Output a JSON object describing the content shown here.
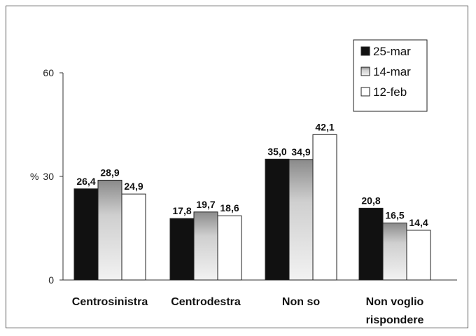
{
  "chart_data": {
    "type": "bar",
    "categories": [
      [
        "Centrosinistra"
      ],
      [
        "Centrodestra"
      ],
      [
        "Non so"
      ],
      [
        "Non voglio",
        "rispondere"
      ]
    ],
    "series": [
      {
        "name": "25-mar",
        "values": [
          26.4,
          17.8,
          35.0,
          20.8
        ],
        "labels": [
          "26,4",
          "17,8",
          "35,0",
          "20,8"
        ],
        "color": "#111111"
      },
      {
        "name": "14-mar",
        "values": [
          28.9,
          19.7,
          34.9,
          16.5
        ],
        "labels": [
          "28,9",
          "19,7",
          "34,9",
          "16,5"
        ],
        "color": "gradient-grey"
      },
      {
        "name": "12-feb",
        "values": [
          24.9,
          18.6,
          42.1,
          14.4
        ],
        "labels": [
          "24,9",
          "18,6",
          "42,1",
          "14,4"
        ],
        "color": "#ffffff"
      }
    ],
    "ylabel": "%",
    "ylim": [
      0,
      60
    ],
    "yticks": [
      "0",
      "30",
      "60"
    ],
    "legend_position": "top-right",
    "grid": false
  }
}
